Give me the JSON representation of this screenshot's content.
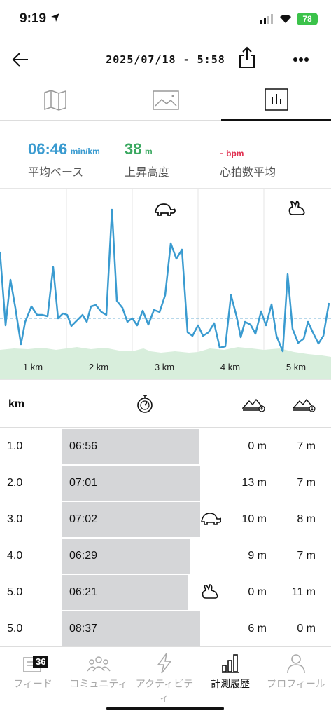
{
  "status": {
    "time": "9:19",
    "battery": "78"
  },
  "nav": {
    "title": "2025/07/18 - 5:58"
  },
  "stats": {
    "pace": {
      "value": "06:46",
      "unit": "min/km",
      "label": "平均ペース",
      "color": "#3a9bd0"
    },
    "elevation": {
      "value": "38",
      "unit": "m",
      "label": "上昇高度",
      "color": "#3aa860"
    },
    "heart": {
      "value": "-",
      "unit": "bpm",
      "label": "心拍数平均",
      "color": "#e03050"
    }
  },
  "chart": {
    "km_labels": [
      "1 km",
      "2 km",
      "3 km",
      "4 km",
      "5 km"
    ],
    "line_color": "#3a9bd0",
    "fill_color": "#d8eedc"
  },
  "table": {
    "header_km": "km",
    "rows": [
      {
        "km": "1.0",
        "pace": "06:56",
        "up": "0 m",
        "down": "7 m",
        "bar": 0.99,
        "icon": ""
      },
      {
        "km": "2.0",
        "pace": "07:01",
        "up": "13 m",
        "down": "7 m",
        "bar": 1.0,
        "icon": ""
      },
      {
        "km": "3.0",
        "pace": "07:02",
        "up": "10 m",
        "down": "8 m",
        "bar": 1.0,
        "icon": "turtle-icon"
      },
      {
        "km": "4.0",
        "pace": "06:29",
        "up": "9 m",
        "down": "7 m",
        "bar": 0.93,
        "icon": ""
      },
      {
        "km": "5.0",
        "pace": "06:21",
        "up": "0 m",
        "down": "11 m",
        "bar": 0.91,
        "icon": "rabbit-icon"
      },
      {
        "km": "5.0",
        "pace": "08:37",
        "up": "6 m",
        "down": "0 m",
        "bar": 1.0,
        "icon": ""
      }
    ]
  },
  "bottom_nav": [
    {
      "label": "フィード",
      "badge": "36"
    },
    {
      "label": "コミュニティ"
    },
    {
      "label": "アクティビティ"
    },
    {
      "label": "計測履歴"
    },
    {
      "label": "プロフィール"
    }
  ]
}
